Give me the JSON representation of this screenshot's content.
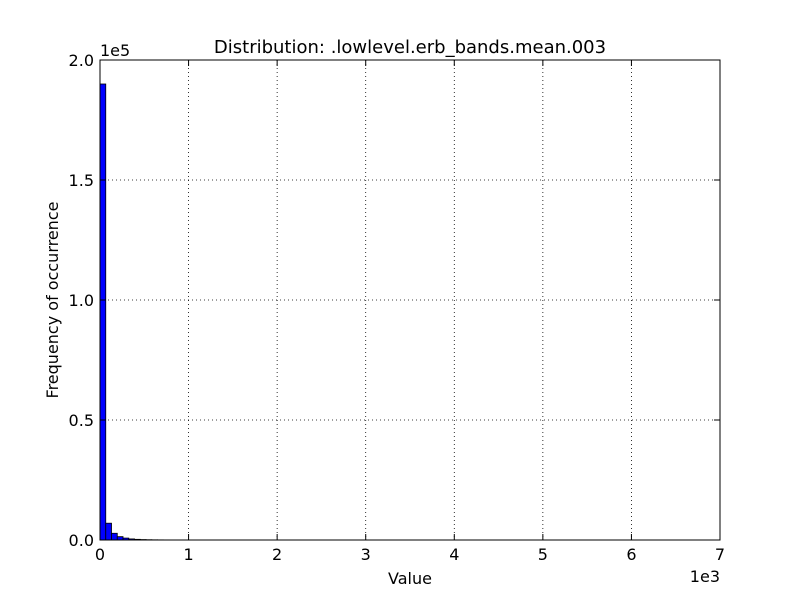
{
  "chart_data": {
    "type": "bar",
    "title": "Distribution: .lowlevel.erb_bands.mean.003",
    "xlabel": "Value",
    "ylabel": "Frequency of occurrence",
    "x_offset_label": "1e3",
    "y_offset_label": "1e5",
    "xlim": [
      0,
      7000
    ],
    "ylim": [
      0,
      200000
    ],
    "x_ticks": [
      0,
      1000,
      2000,
      3000,
      4000,
      5000,
      6000,
      7000
    ],
    "x_tick_labels": [
      "0",
      "1",
      "2",
      "3",
      "4",
      "5",
      "6",
      "7"
    ],
    "y_ticks": [
      0,
      50000,
      100000,
      150000,
      200000
    ],
    "y_tick_labels": [
      "0.0",
      "0.5",
      "1.0",
      "1.5",
      "2.0"
    ],
    "grid": true,
    "bar_color": "#0000ff",
    "bin_edges": [
      0,
      65,
      130,
      195,
      260,
      325,
      390,
      455,
      520,
      585,
      650,
      715,
      780,
      845,
      910,
      975,
      1040,
      1105,
      1170,
      1235,
      1300,
      1365,
      1430,
      1495,
      1560,
      1625,
      1690,
      1755,
      1820,
      1885,
      1950,
      2015,
      2080,
      2145,
      2210,
      2275,
      2340,
      2405,
      2470,
      2535,
      2600,
      2665,
      2730,
      2795,
      2860,
      2925,
      2990,
      3055,
      3120,
      3185,
      3250,
      3315,
      3380,
      3445,
      3510,
      3575,
      3640,
      3705,
      3770,
      3835,
      3900,
      3965,
      4030,
      4095,
      4160,
      4225,
      4290,
      4355,
      4420,
      4485,
      4550,
      4615,
      4680,
      4745,
      4810,
      4875,
      4940,
      5005,
      5070,
      5135,
      5200,
      5265,
      5330,
      5395,
      5460,
      5525,
      5590,
      5655,
      5720,
      5785,
      5850,
      5915,
      5980,
      6045,
      6110,
      6175,
      6240,
      6305,
      6370,
      6435,
      6500
    ],
    "values": [
      190000,
      7000,
      2800,
      1400,
      800,
      450,
      280,
      180,
      120,
      80,
      60,
      45,
      35,
      28,
      22,
      18,
      15,
      12,
      10,
      9,
      8,
      7,
      6,
      5,
      5,
      4,
      4,
      3,
      3,
      3,
      2,
      2,
      2,
      2,
      2,
      1,
      1,
      1,
      1,
      1,
      1,
      1,
      1,
      1,
      1,
      1,
      1,
      1,
      1,
      1,
      1,
      1,
      1,
      1,
      1,
      1,
      1,
      1,
      1,
      1,
      1,
      1,
      1,
      1,
      1,
      1,
      1,
      1,
      1,
      1,
      1,
      1,
      1,
      1,
      1,
      1,
      1,
      1,
      1,
      1,
      1,
      1,
      1,
      1,
      1,
      1,
      1,
      1,
      1,
      1,
      1,
      1,
      1,
      1,
      1,
      1,
      1,
      1,
      1,
      1
    ]
  }
}
